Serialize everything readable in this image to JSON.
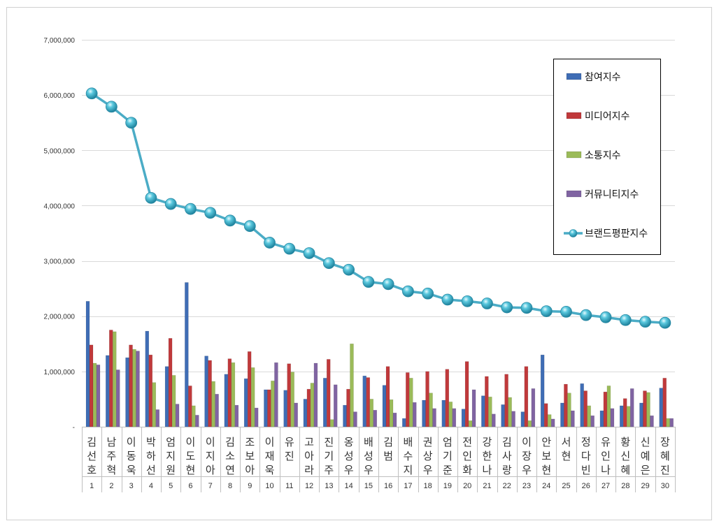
{
  "chart_data": {
    "type": "bar",
    "title": "",
    "xlabel": "",
    "ylabel": "",
    "ylim": [
      0,
      7000000
    ],
    "yticks": [
      0,
      1000000,
      2000000,
      3000000,
      4000000,
      5000000,
      6000000,
      7000000
    ],
    "ytick_labels": [
      "-",
      "1,000,000",
      "2,000,000",
      "3,000,000",
      "4,000,000",
      "5,000,000",
      "6,000,000",
      "7,000,000"
    ],
    "grid": true,
    "legend_position": "top-right",
    "categories": [
      "김선호",
      "남주혁",
      "이동욱",
      "박하선",
      "엄지원",
      "이도현",
      "이지아",
      "김소연",
      "조보아",
      "이재욱",
      "유진",
      "고아라",
      "진기주",
      "옹성우",
      "배성우",
      "김범",
      "배수지",
      "권상우",
      "엄기준",
      "전인화",
      "강한나",
      "김사랑",
      "이장우",
      "안보현",
      "서현",
      "정다빈",
      "유인나",
      "황신혜",
      "신예은",
      "장혜진"
    ],
    "ranks": [
      "1",
      "2",
      "3",
      "4",
      "5",
      "6",
      "7",
      "8",
      "9",
      "10",
      "11",
      "12",
      "13",
      "14",
      "15",
      "16",
      "17",
      "18",
      "19",
      "20",
      "21",
      "22",
      "23",
      "24",
      "25",
      "26",
      "27",
      "28",
      "29",
      "30"
    ],
    "series": [
      {
        "name": "참여지수",
        "kind": "bar",
        "color": "#3f6db5",
        "values": [
          2270000,
          1290000,
          1250000,
          1730000,
          1090000,
          2610000,
          1280000,
          950000,
          870000,
          670000,
          660000,
          500000,
          880000,
          390000,
          920000,
          750000,
          150000,
          480000,
          480000,
          320000,
          560000,
          400000,
          270000,
          1300000,
          430000,
          780000,
          290000,
          380000,
          430000,
          700000
        ]
      },
      {
        "name": "미디어지수",
        "kind": "bar",
        "color": "#c0393b",
        "values": [
          1480000,
          1750000,
          1480000,
          1300000,
          1600000,
          740000,
          1200000,
          1230000,
          1360000,
          670000,
          1140000,
          680000,
          1220000,
          680000,
          890000,
          1090000,
          980000,
          1000000,
          1040000,
          1180000,
          910000,
          950000,
          1090000,
          420000,
          770000,
          650000,
          630000,
          510000,
          650000,
          880000
        ]
      },
      {
        "name": "소통지수",
        "kind": "bar",
        "color": "#9bbb59",
        "values": [
          1150000,
          1720000,
          1400000,
          800000,
          930000,
          380000,
          820000,
          1160000,
          1070000,
          830000,
          990000,
          790000,
          130000,
          1500000,
          500000,
          490000,
          880000,
          610000,
          450000,
          110000,
          540000,
          530000,
          110000,
          220000,
          610000,
          380000,
          740000,
          370000,
          620000,
          150000
        ]
      },
      {
        "name": "커뮤니티지수",
        "kind": "bar",
        "color": "#8064a2",
        "values": [
          1120000,
          1030000,
          1370000,
          310000,
          410000,
          210000,
          590000,
          390000,
          340000,
          1160000,
          430000,
          1150000,
          760000,
          270000,
          300000,
          250000,
          440000,
          330000,
          330000,
          670000,
          230000,
          280000,
          690000,
          140000,
          290000,
          200000,
          330000,
          690000,
          200000,
          150000
        ]
      },
      {
        "name": "브랜드평판지수",
        "kind": "line",
        "color": "#4bacc6",
        "values": [
          6030000,
          5790000,
          5500000,
          4140000,
          4030000,
          3940000,
          3870000,
          3730000,
          3630000,
          3330000,
          3220000,
          3140000,
          2960000,
          2840000,
          2620000,
          2580000,
          2450000,
          2410000,
          2300000,
          2270000,
          2230000,
          2160000,
          2150000,
          2090000,
          2080000,
          2020000,
          1980000,
          1930000,
          1900000,
          1880000
        ]
      }
    ]
  }
}
